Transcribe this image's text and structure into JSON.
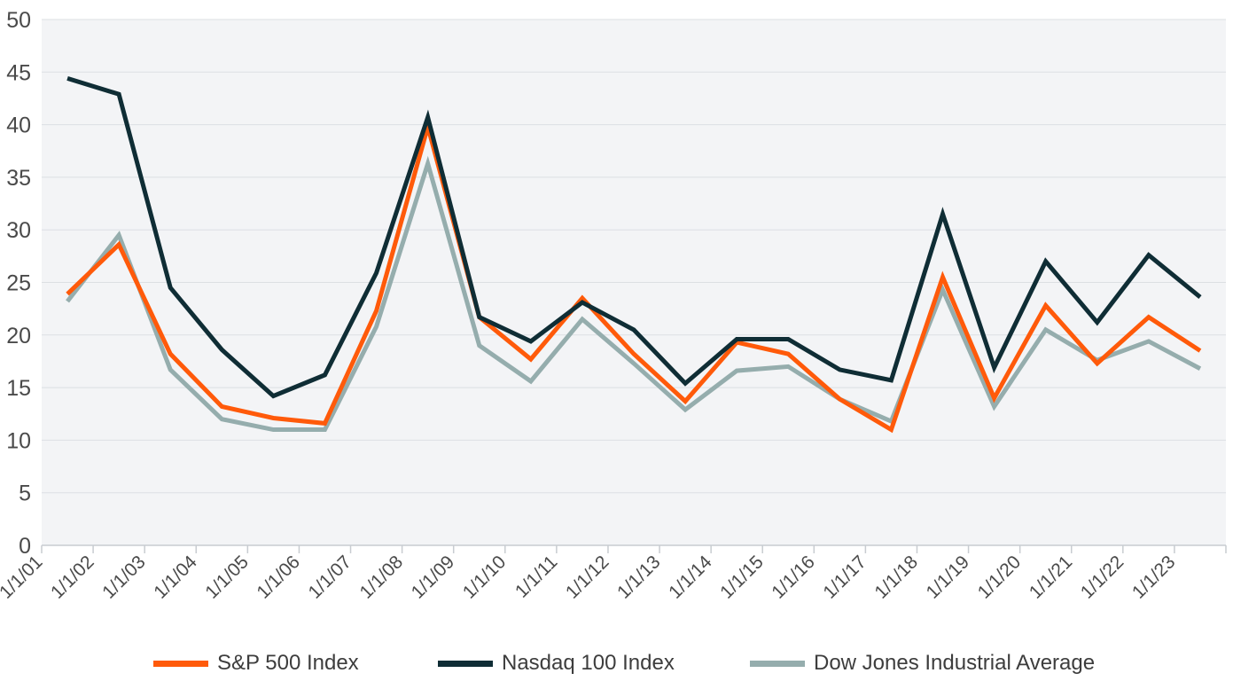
{
  "chart_data": {
    "type": "line",
    "title": "",
    "xlabel": "",
    "ylabel": "",
    "ylim": [
      0,
      50
    ],
    "yticks": [
      "0",
      "5",
      "10",
      "15",
      "20",
      "25",
      "30",
      "35",
      "40",
      "45",
      "50"
    ],
    "categories": [
      "1/1/01",
      "1/1/02",
      "1/1/03",
      "1/1/04",
      "1/1/05",
      "1/1/06",
      "1/1/07",
      "1/1/08",
      "1/1/09",
      "1/1/10",
      "1/1/11",
      "1/1/12",
      "1/1/13",
      "1/1/14",
      "1/1/15",
      "1/1/16",
      "1/1/17",
      "1/1/18",
      "1/1/19",
      "1/1/20",
      "1/1/21",
      "1/1/22",
      "1/1/23"
    ],
    "grid": true,
    "legend_position": "bottom",
    "series": [
      {
        "name": "S&P 500 Index",
        "color": "#ff5a0a",
        "values": [
          23.9,
          28.6,
          18.2,
          13.2,
          12.1,
          11.6,
          22.3,
          39.8,
          21.7,
          17.7,
          23.5,
          18.2,
          13.7,
          19.3,
          18.2,
          13.9,
          11.0,
          25.5,
          14.0,
          22.8,
          17.3,
          21.7,
          18.5
        ]
      },
      {
        "name": "Nasdaq 100 Index",
        "color": "#0f2d35",
        "values": [
          44.4,
          42.9,
          24.5,
          18.6,
          14.2,
          16.2,
          25.9,
          40.7,
          21.7,
          19.4,
          23.1,
          20.5,
          15.4,
          19.6,
          19.6,
          16.7,
          15.7,
          31.5,
          16.9,
          27.0,
          21.2,
          27.6,
          23.6
        ]
      },
      {
        "name": "Dow Jones Industrial Average",
        "color": "#95adad",
        "values": [
          23.2,
          29.5,
          16.7,
          12.0,
          11.0,
          11.0,
          20.8,
          36.3,
          19.0,
          15.6,
          21.5,
          17.3,
          12.9,
          16.6,
          17.0,
          13.9,
          11.8,
          24.3,
          13.2,
          20.5,
          17.6,
          19.4,
          16.8
        ]
      }
    ]
  }
}
